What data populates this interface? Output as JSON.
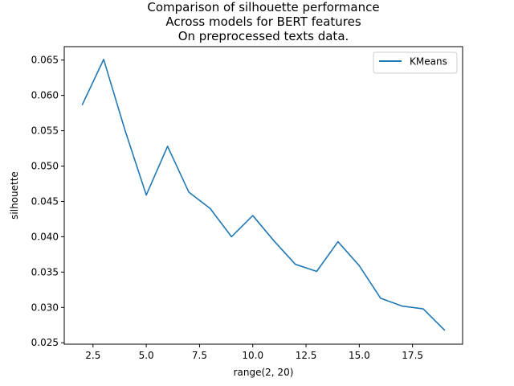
{
  "chart_data": {
    "type": "line",
    "title_lines": [
      "Comparison of silhouette performance",
      "Across models for BERT features",
      "On preprocessed texts data."
    ],
    "xlabel": "range(2, 20)",
    "ylabel": "silhouette",
    "xlim": [
      1.15,
      19.85
    ],
    "ylim": [
      0.0248,
      0.0669
    ],
    "xticks": [
      2.5,
      5.0,
      7.5,
      10.0,
      12.5,
      15.0,
      17.5
    ],
    "xtick_labels": [
      "2.5",
      "5.0",
      "7.5",
      "10.0",
      "12.5",
      "15.0",
      "17.5"
    ],
    "yticks": [
      0.025,
      0.03,
      0.035,
      0.04,
      0.045,
      0.05,
      0.055,
      0.06,
      0.065
    ],
    "ytick_labels": [
      "0.025",
      "0.030",
      "0.035",
      "0.040",
      "0.045",
      "0.050",
      "0.055",
      "0.060",
      "0.065"
    ],
    "grid": false,
    "legend_position": "top-right",
    "series": [
      {
        "name": "KMeans",
        "color": "#1f77b4",
        "x": [
          2,
          3,
          4,
          5,
          6,
          7,
          8,
          9,
          10,
          11,
          12,
          13,
          14,
          15,
          16,
          17,
          18,
          19
        ],
        "y": [
          0.0587,
          0.0651,
          0.0551,
          0.0459,
          0.0528,
          0.0463,
          0.044,
          0.04,
          0.043,
          0.0394,
          0.0361,
          0.0351,
          0.0393,
          0.0359,
          0.0313,
          0.0302,
          0.0298,
          0.0268
        ]
      }
    ]
  }
}
